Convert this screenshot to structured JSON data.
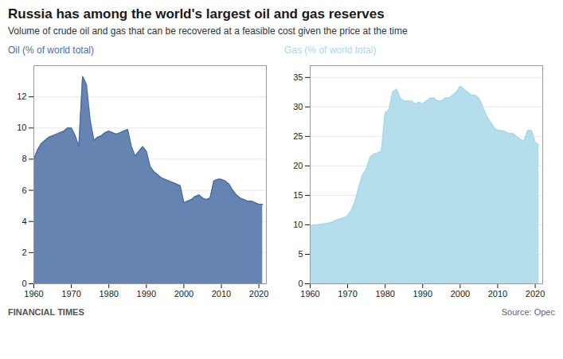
{
  "chart_data": [
    {
      "type": "area",
      "title": "Russia has among the world's largest oil and gas reserves",
      "subtitle": "Volume of crude oil and gas that can be recovered at a feasible cost given the price at the time",
      "annotations": [
        "FINANCIAL TIMES",
        "Source: Opec"
      ],
      "ylabel": "Oil (% of world total)",
      "color": "#4a6fa5",
      "x": [
        1960,
        1961,
        1962,
        1963,
        1964,
        1965,
        1966,
        1967,
        1968,
        1969,
        1970,
        1971,
        1972,
        1973,
        1974,
        1975,
        1976,
        1977,
        1978,
        1979,
        1980,
        1981,
        1982,
        1983,
        1984,
        1985,
        1986,
        1987,
        1988,
        1989,
        1990,
        1991,
        1992,
        1993,
        1994,
        1995,
        1996,
        1997,
        1998,
        1999,
        2000,
        2001,
        2002,
        2003,
        2004,
        2005,
        2006,
        2007,
        2008,
        2009,
        2010,
        2011,
        2012,
        2013,
        2014,
        2015,
        2016,
        2017,
        2018,
        2019,
        2020,
        2021
      ],
      "values": [
        8.0,
        8.6,
        9.0,
        9.2,
        9.4,
        9.5,
        9.6,
        9.7,
        9.8,
        10.0,
        10.0,
        9.5,
        8.8,
        13.3,
        12.8,
        10.5,
        9.2,
        9.4,
        9.5,
        9.7,
        9.8,
        9.7,
        9.6,
        9.7,
        9.8,
        9.9,
        8.8,
        8.2,
        8.5,
        8.8,
        8.5,
        7.5,
        7.2,
        7.0,
        6.8,
        6.7,
        6.6,
        6.5,
        6.4,
        6.3,
        5.2,
        5.3,
        5.4,
        5.6,
        5.7,
        5.5,
        5.4,
        5.5,
        6.6,
        6.7,
        6.7,
        6.6,
        6.4,
        6.0,
        5.7,
        5.5,
        5.4,
        5.3,
        5.3,
        5.2,
        5.1,
        5.1
      ],
      "xlim": [
        1960,
        2022
      ],
      "xticks": [
        1960,
        1970,
        1980,
        1990,
        2000,
        2010,
        2020
      ],
      "ylim": [
        0,
        14
      ],
      "yticks": [
        0,
        2,
        4,
        6,
        8,
        10,
        12
      ],
      "grid": true
    },
    {
      "type": "area",
      "ylabel": "Gas (% of world total)",
      "color": "#a8d8ea",
      "x": [
        1960,
        1961,
        1962,
        1963,
        1964,
        1965,
        1966,
        1967,
        1968,
        1969,
        1970,
        1971,
        1972,
        1973,
        1974,
        1975,
        1976,
        1977,
        1978,
        1979,
        1980,
        1981,
        1982,
        1983,
        1984,
        1985,
        1986,
        1987,
        1988,
        1989,
        1990,
        1991,
        1992,
        1993,
        1994,
        1995,
        1996,
        1997,
        1998,
        1999,
        2000,
        2001,
        2002,
        2003,
        2004,
        2005,
        2006,
        2007,
        2008,
        2009,
        2010,
        2011,
        2012,
        2013,
        2014,
        2015,
        2016,
        2017,
        2018,
        2019,
        2020,
        2021
      ],
      "values": [
        9.8,
        10.0,
        10.0,
        10.1,
        10.2,
        10.3,
        10.5,
        10.8,
        11.0,
        11.2,
        11.5,
        12.5,
        14.0,
        16.5,
        18.5,
        19.5,
        21.5,
        22.0,
        22.2,
        22.5,
        29.0,
        29.5,
        32.5,
        33.0,
        31.5,
        31.0,
        31.0,
        31.0,
        30.5,
        30.8,
        30.5,
        31.0,
        31.5,
        31.5,
        31.0,
        31.0,
        31.5,
        31.5,
        32.0,
        32.5,
        33.5,
        33.0,
        32.5,
        32.0,
        32.0,
        31.5,
        30.0,
        28.5,
        27.5,
        26.5,
        26.0,
        26.0,
        25.8,
        25.5,
        25.5,
        25.0,
        24.5,
        24.2,
        26.0,
        26.0,
        24.0,
        23.5
      ],
      "xlim": [
        1960,
        2022
      ],
      "xticks": [
        1960,
        1970,
        1980,
        1990,
        2000,
        2010,
        2020
      ],
      "ylim": [
        0,
        37
      ],
      "yticks": [
        0,
        5,
        10,
        15,
        20,
        25,
        30,
        35
      ],
      "grid": true
    }
  ]
}
